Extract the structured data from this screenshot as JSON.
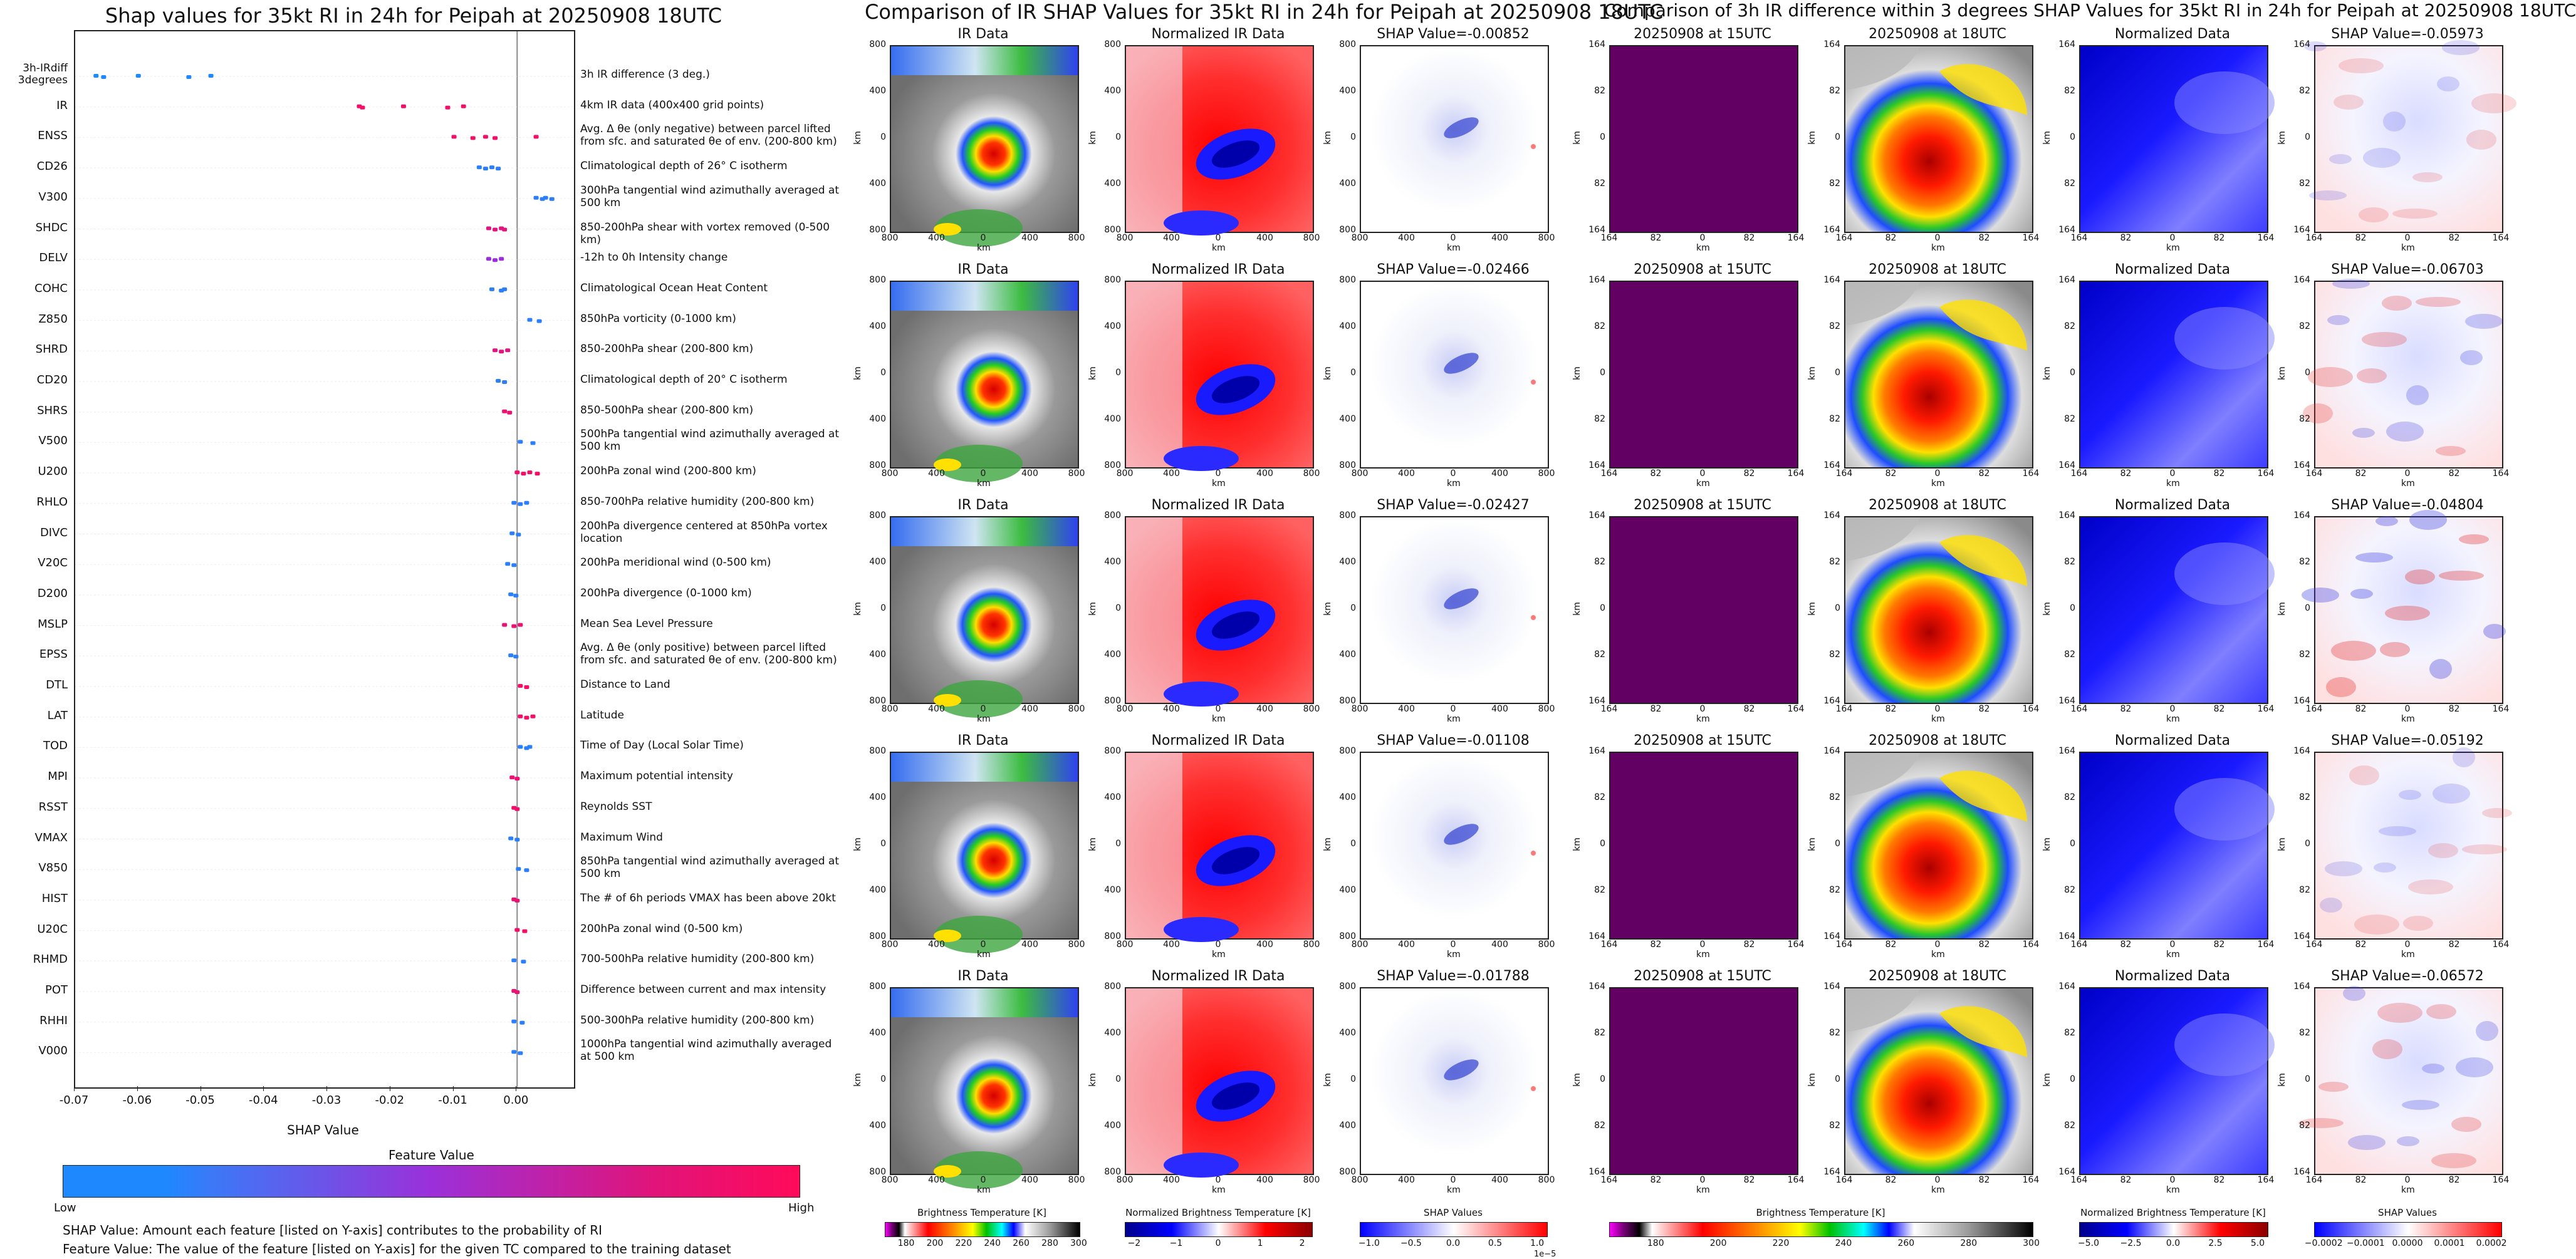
{
  "left": {
    "title": "Shap values for 35kt RI in 24h for Peipah at 20250908 18UTC",
    "xlabel": "SHAP Value",
    "legend_title": "Feature Value",
    "legend_low": "Low",
    "legend_high": "High",
    "note1": "SHAP Value: Amount each feature [listed on Y-axis] contributes to the probability of RI",
    "note2": "Feature Value: The value of the feature [listed on Y-axis] for the given TC compared to the training dataset"
  },
  "colors": {
    "low": "#1e88ff",
    "mid": "#9b30d9",
    "high": "#ff0a5a"
  },
  "chart_data": [
    {
      "type": "scatter",
      "title": "Shap values for 35kt RI in 24h for Peipah at 20250908 18UTC",
      "xlabel": "SHAP Value",
      "xlim": [
        -0.07,
        0.009
      ],
      "xticks": [
        "-0.07",
        "-0.06",
        "-0.05",
        "-0.04",
        "-0.03",
        "-0.02",
        "-0.01",
        "0.00"
      ],
      "xtick_values": [
        -0.07,
        -0.06,
        -0.05,
        -0.04,
        -0.03,
        -0.02,
        -0.01,
        0.0
      ],
      "features": [
        {
          "name": "3h-IRdiff 3degrees",
          "desc": "3h IR difference (3 deg.)",
          "values": [
            -0.0667,
            -0.0655,
            -0.06,
            -0.052,
            -0.0485
          ],
          "fv": 0.0
        },
        {
          "name": "IR",
          "desc": "4km IR data (400x400 grid points)",
          "values": [
            -0.025,
            -0.0245,
            -0.018,
            -0.011,
            -0.0085
          ],
          "fv": 0.95
        },
        {
          "name": "ENSS",
          "desc": "Avg. Δ θe (only negative) between parcel lifted from sfc. and saturated θe of env. (200-800 km)",
          "values": [
            -0.01,
            -0.007,
            -0.005,
            -0.0035,
            0.003
          ],
          "fv": 0.95
        },
        {
          "name": "CD26",
          "desc": "Climatological depth of 26° C isotherm",
          "values": [
            -0.006,
            -0.005,
            -0.004,
            -0.003
          ],
          "fv": 0.05
        },
        {
          "name": "V300",
          "desc": "300hPa tangential wind azimuthally averaged at 500 km",
          "values": [
            0.003,
            0.004,
            0.0045,
            0.0055
          ],
          "fv": 0.05
        },
        {
          "name": "SHDC",
          "desc": "850-200hPa shear with vortex removed (0-500 km)",
          "values": [
            -0.0045,
            -0.0035,
            -0.0025,
            -0.002
          ],
          "fv": 0.85
        },
        {
          "name": "DELV",
          "desc": "-12h to 0h Intensity change",
          "values": [
            -0.0045,
            -0.0035,
            -0.0025
          ],
          "fv": 0.5
        },
        {
          "name": "COHC",
          "desc": "Climatological Ocean Heat Content",
          "values": [
            -0.004,
            -0.0025,
            -0.002
          ],
          "fv": 0.05
        },
        {
          "name": "Z850",
          "desc": "850hPa vorticity (0-1000 km)",
          "values": [
            0.002,
            0.0035
          ],
          "fv": 0.05
        },
        {
          "name": "SHRD",
          "desc": "850-200hPa shear (200-800 km)",
          "values": [
            -0.0035,
            -0.0025,
            -0.0015
          ],
          "fv": 0.85
        },
        {
          "name": "CD20",
          "desc": "Climatological depth of 20° C isotherm",
          "values": [
            -0.003,
            -0.002
          ],
          "fv": 0.05
        },
        {
          "name": "SHRS",
          "desc": "850-500hPa shear (200-800 km)",
          "values": [
            -0.002,
            -0.0012
          ],
          "fv": 0.9
        },
        {
          "name": "V500",
          "desc": "500hPa tangential wind azimuthally averaged at 500 km",
          "values": [
            0.0005,
            0.0025
          ],
          "fv": 0.05
        },
        {
          "name": "U200",
          "desc": "200hPa zonal wind (200-800 km)",
          "values": [
            0.0,
            0.001,
            0.002,
            0.0032
          ],
          "fv": 0.95
        },
        {
          "name": "RHLO",
          "desc": "850-700hPa relative humidity (200-800 km)",
          "values": [
            -0.0005,
            0.0005,
            0.0015
          ],
          "fv": 0.05
        },
        {
          "name": "DIVC",
          "desc": "200hPa divergence centered at 850hPa vortex location",
          "values": [
            -0.0008,
            0.0002
          ],
          "fv": 0.05
        },
        {
          "name": "V20C",
          "desc": "200hPa meridional wind (0-500 km)",
          "values": [
            -0.0015,
            -0.0005
          ],
          "fv": 0.05
        },
        {
          "name": "D200",
          "desc": "200hPa divergence (0-1000 km)",
          "values": [
            -0.001,
            -0.0002
          ],
          "fv": 0.05
        },
        {
          "name": "MSLP",
          "desc": "Mean Sea Level Pressure",
          "values": [
            -0.002,
            -0.0005,
            0.0005
          ],
          "fv": 0.9
        },
        {
          "name": "EPSS",
          "desc": "Avg. Δ θe (only positive) between parcel lifted from sfc. and saturated θe of env. (200-800 km)",
          "values": [
            -0.001,
            -0.0002
          ],
          "fv": 0.05
        },
        {
          "name": "DTL",
          "desc": "Distance to Land",
          "values": [
            0.0005,
            0.0015
          ],
          "fv": 0.95
        },
        {
          "name": "LAT",
          "desc": "Latitude",
          "values": [
            0.0005,
            0.0015,
            0.0025
          ],
          "fv": 0.95
        },
        {
          "name": "TOD",
          "desc": "Time of Day (Local Solar Time)",
          "values": [
            0.0005,
            0.0015,
            0.002
          ],
          "fv": 0.05
        },
        {
          "name": "MPI",
          "desc": "Maximum potential intensity",
          "values": [
            -0.0008,
            0.0
          ],
          "fv": 0.9
        },
        {
          "name": "RSST",
          "desc": "Reynolds SST",
          "values": [
            -0.0005,
            0.0
          ],
          "fv": 0.95
        },
        {
          "name": "VMAX",
          "desc": "Maximum Wind",
          "values": [
            -0.001,
            0.0
          ],
          "fv": 0.05
        },
        {
          "name": "V850",
          "desc": "850hPa tangential wind azimuthally averaged at 500 km",
          "values": [
            0.0002,
            0.0015
          ],
          "fv": 0.05
        },
        {
          "name": "HIST",
          "desc": "The # of 6h periods VMAX has been above 20kt",
          "values": [
            -0.0005,
            0.0
          ],
          "fv": 0.9
        },
        {
          "name": "U20C",
          "desc": "200hPa zonal wind (0-500 km)",
          "values": [
            0.0,
            0.0012
          ],
          "fv": 0.95
        },
        {
          "name": "RHMD",
          "desc": "700-500hPa relative humidity (200-800 km)",
          "values": [
            -0.0005,
            0.001
          ],
          "fv": 0.05
        },
        {
          "name": "POT",
          "desc": "Difference between current and max intensity",
          "values": [
            -0.0005,
            0.0
          ],
          "fv": 0.9
        },
        {
          "name": "RHHI",
          "desc": "500-300hPa relative humidity (200-800 km)",
          "values": [
            -0.0005,
            0.0008
          ],
          "fv": 0.05
        },
        {
          "name": "V000",
          "desc": "1000hPa tangential wind azimuthally averaged at 500 km",
          "values": [
            -0.0005,
            0.0005
          ],
          "fv": 0.05
        }
      ]
    },
    {
      "type": "heatmap",
      "title": "Comparison of IR SHAP Values for 35kt RI in 24h for Peipah at 20250908 18UTC",
      "rows": 5,
      "panels": [
        "IR Data",
        "Normalized IR Data",
        "SHAP Value"
      ],
      "shap_values": [
        "-0.00852",
        "-0.02466",
        "-0.02427",
        "-0.01108",
        "-0.01788"
      ],
      "xticks": [
        "800",
        "400",
        "0",
        "400",
        "800"
      ],
      "yticks": [
        "800",
        "400",
        "0",
        "400",
        "800"
      ],
      "xlabel": "km",
      "ylabel": "km",
      "colorbars": [
        {
          "label": "Brightness Temperature [K]",
          "ticks": [
            "180",
            "200",
            "220",
            "240",
            "260",
            "280",
            "300"
          ]
        },
        {
          "label": "Normalized Brightness Temperature [K]",
          "ticks": [
            "−2",
            "−1",
            "0",
            "1",
            "2"
          ]
        },
        {
          "label": "SHAP Values",
          "ticks": [
            "−1.0",
            "−0.5",
            "0.0",
            "0.5",
            "1.0"
          ],
          "offset": "1e−5"
        }
      ]
    },
    {
      "type": "heatmap",
      "title": "Comparison of 3h IR difference within 3 degrees SHAP Values for 35kt RI in 24h for Peipah at 20250908 18UTC",
      "rows": 5,
      "panels": [
        "20250908 at 15UTC",
        "20250908 at 18UTC",
        "Normalized Data",
        "SHAP Value"
      ],
      "shap_values": [
        "-0.05973",
        "-0.06703",
        "-0.04804",
        "-0.05192",
        "-0.06572"
      ],
      "xticks": [
        "164",
        "82",
        "0",
        "82",
        "164"
      ],
      "yticks": [
        "164",
        "82",
        "0",
        "82",
        "164"
      ],
      "xlabel": "km",
      "ylabel": "km",
      "colorbars": [
        {
          "label": "Brightness Temperature [K]",
          "ticks": [
            "180",
            "200",
            "220",
            "240",
            "260",
            "280",
            "300"
          ]
        },
        {
          "label": "Normalized Brightness Temperature [K]",
          "ticks": [
            "−5.0",
            "−2.5",
            "0.0",
            "2.5",
            "5.0"
          ]
        },
        {
          "label": "SHAP Values",
          "ticks": [
            "−0.0002",
            "−0.0001",
            "0.0000",
            "0.0001",
            "0.0002"
          ]
        }
      ]
    }
  ]
}
